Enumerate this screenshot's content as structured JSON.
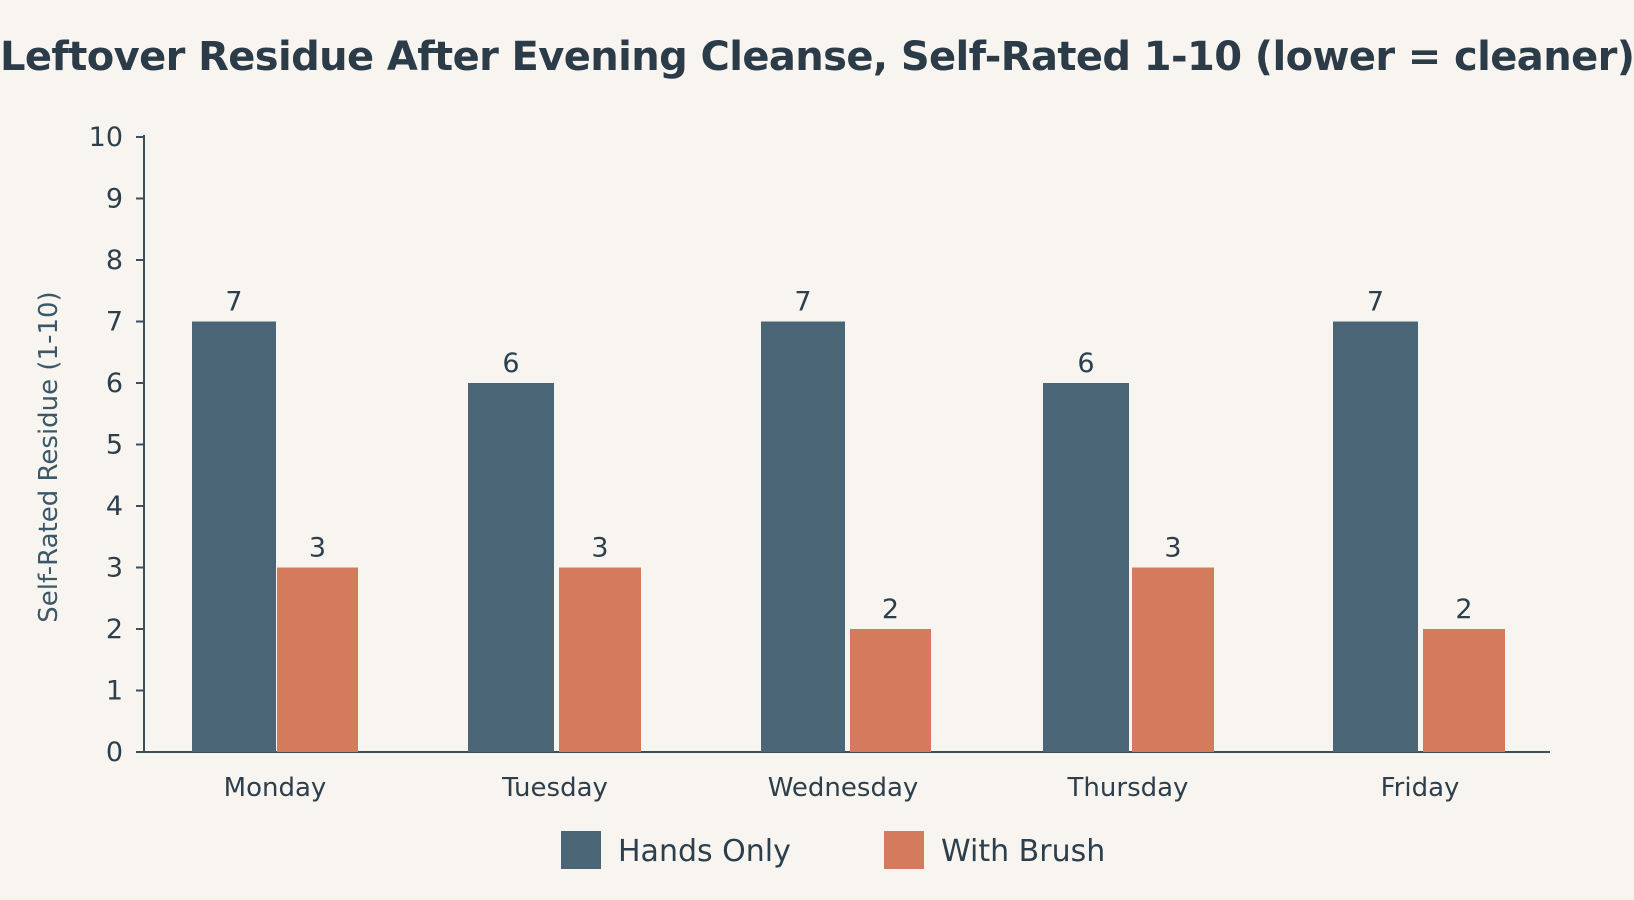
{
  "chart_data": {
    "type": "bar",
    "title": "Leftover Residue After Evening Cleanse, Self-Rated 1-10 (lower = cleaner)",
    "xlabel": "",
    "ylabel": "Self-Rated Residue (1-10)",
    "ylim": [
      0,
      10
    ],
    "yticks": [
      "0",
      "1",
      "2",
      "3",
      "4",
      "5",
      "6",
      "7",
      "8",
      "9",
      "10"
    ],
    "categories": [
      "Monday",
      "Tuesday",
      "Wednesday",
      "Thursday",
      "Friday"
    ],
    "series": [
      {
        "name": "Hands Only",
        "values": [
          7,
          6,
          7,
          6,
          7
        ],
        "color": "#4a6676"
      },
      {
        "name": "With Brush",
        "values": [
          3,
          3,
          2,
          3,
          2
        ],
        "color": "#d47b5e"
      }
    ],
    "data_labels": true,
    "grid": false,
    "legend_position": "bottom-center"
  }
}
